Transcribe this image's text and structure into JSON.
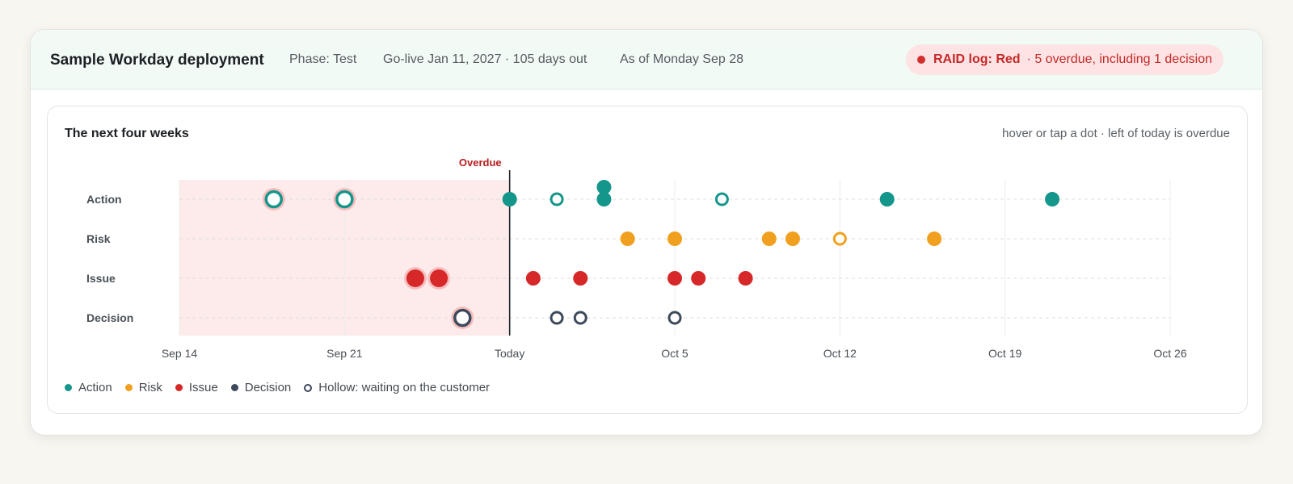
{
  "header": {
    "title": "Sample Workday deployment",
    "phase": "Phase: Test",
    "golive": "Go-live Jan 11, 2027 · 105 days out",
    "as_of": "As of Monday Sep 28",
    "raid": {
      "status": "RAID log: Red",
      "detail": "· 5 overdue, including 1 decision",
      "color": "#d32f2f"
    }
  },
  "panel": {
    "title": "The next four weeks",
    "hint": "hover or tap a dot · left of today is overdue"
  },
  "legend": {
    "action": "Action",
    "risk": "Risk",
    "issue": "Issue",
    "decision": "Decision",
    "hollow": "Hollow: waiting on the customer"
  },
  "chart_data": {
    "type": "scatter",
    "overdue_label": "Overdue",
    "today": "Sep 28",
    "x_ticks": [
      {
        "date": "Sep 14",
        "label": "Sep 14"
      },
      {
        "date": "Sep 21",
        "label": "Sep 21"
      },
      {
        "date": "Sep 28",
        "label": "Today"
      },
      {
        "date": "Oct 5",
        "label": "Oct 5"
      },
      {
        "date": "Oct 12",
        "label": "Oct 12"
      },
      {
        "date": "Oct 19",
        "label": "Oct 19"
      },
      {
        "date": "Oct 26",
        "label": "Oct 26"
      }
    ],
    "xlim": [
      "Sep 14",
      "Oct 26"
    ],
    "rows": [
      "Action",
      "Risk",
      "Issue",
      "Decision"
    ],
    "colors": {
      "Action": "#14968a",
      "Risk": "#f0a01e",
      "Issue": "#d62828",
      "Decision": "#3d4a5c",
      "overdue_band": "#fdebeb"
    },
    "series": [
      {
        "name": "Action",
        "points": [
          {
            "date": "Sep 18",
            "hollow": true,
            "overdue": true
          },
          {
            "date": "Sep 21",
            "hollow": true,
            "overdue": true
          },
          {
            "date": "Sep 28",
            "hollow": false
          },
          {
            "date": "Sep 30",
            "hollow": true
          },
          {
            "date": "Oct 2",
            "hollow": false
          },
          {
            "date": "Oct 2",
            "hollow": false,
            "stacked": true
          },
          {
            "date": "Oct 7",
            "hollow": true
          },
          {
            "date": "Oct 14",
            "hollow": false
          },
          {
            "date": "Oct 21",
            "hollow": false
          }
        ]
      },
      {
        "name": "Risk",
        "points": [
          {
            "date": "Oct 3",
            "hollow": false
          },
          {
            "date": "Oct 5",
            "hollow": false
          },
          {
            "date": "Oct 9",
            "hollow": false
          },
          {
            "date": "Oct 10",
            "hollow": false
          },
          {
            "date": "Oct 12",
            "hollow": true
          },
          {
            "date": "Oct 16",
            "hollow": false
          }
        ]
      },
      {
        "name": "Issue",
        "points": [
          {
            "date": "Sep 24",
            "hollow": false,
            "overdue": true
          },
          {
            "date": "Sep 25",
            "hollow": false,
            "overdue": true
          },
          {
            "date": "Sep 29",
            "hollow": false
          },
          {
            "date": "Oct 1",
            "hollow": false
          },
          {
            "date": "Oct 5",
            "hollow": false
          },
          {
            "date": "Oct 6",
            "hollow": false
          },
          {
            "date": "Oct 8",
            "hollow": false
          }
        ]
      },
      {
        "name": "Decision",
        "points": [
          {
            "date": "Sep 26",
            "hollow": true,
            "overdue": true
          },
          {
            "date": "Sep 30",
            "hollow": true
          },
          {
            "date": "Oct 1",
            "hollow": true
          },
          {
            "date": "Oct 5",
            "hollow": true
          }
        ]
      }
    ]
  }
}
